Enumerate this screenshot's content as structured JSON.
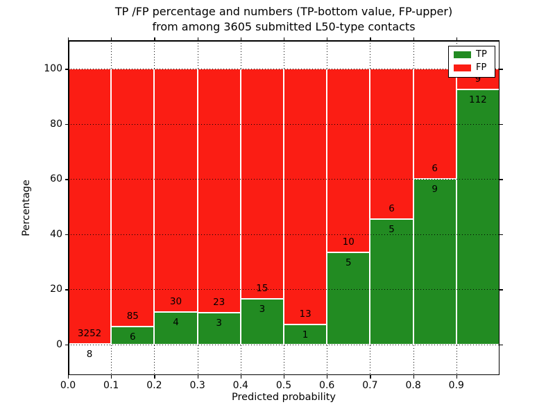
{
  "chart_data": {
    "type": "bar",
    "stacked": true,
    "normalized_to_percent": 100,
    "title_lines": [
      "TP /FP percentage and numbers (TP-bottom value, FP-upper)",
      "from among 3605 submitted L50-type contacts"
    ],
    "total_submitted_contacts": 3605,
    "xlabel": "Predicted probability",
    "ylabel": "Percentage",
    "bin_width": 0.1,
    "xlim": [
      0.0,
      1.0
    ],
    "ylim": [
      -11.1,
      110.4
    ],
    "xticks": [
      "0.0",
      "0.1",
      "0.2",
      "0.3",
      "0.4",
      "0.5",
      "0.6",
      "0.7",
      "0.8",
      "0.9"
    ],
    "yticks": [
      0,
      20,
      40,
      60,
      80,
      100
    ],
    "grid": "dotted",
    "series": [
      {
        "name": "TP",
        "color": "#228b22",
        "counts": [
          8,
          6,
          4,
          3,
          3,
          1,
          5,
          5,
          9,
          112
        ]
      },
      {
        "name": "FP",
        "color": "#fb1d14",
        "counts": [
          3252,
          85,
          30,
          23,
          15,
          13,
          10,
          6,
          6,
          9
        ]
      }
    ],
    "tp_percent_per_bin": [
      0.25,
      6.59,
      11.76,
      11.54,
      16.67,
      7.14,
      33.33,
      45.45,
      60.0,
      92.56
    ],
    "legend": {
      "position": "upper right",
      "entries": [
        {
          "label": "TP",
          "color": "#228b22"
        },
        {
          "label": "FP",
          "color": "#fb1d14"
        }
      ]
    }
  }
}
